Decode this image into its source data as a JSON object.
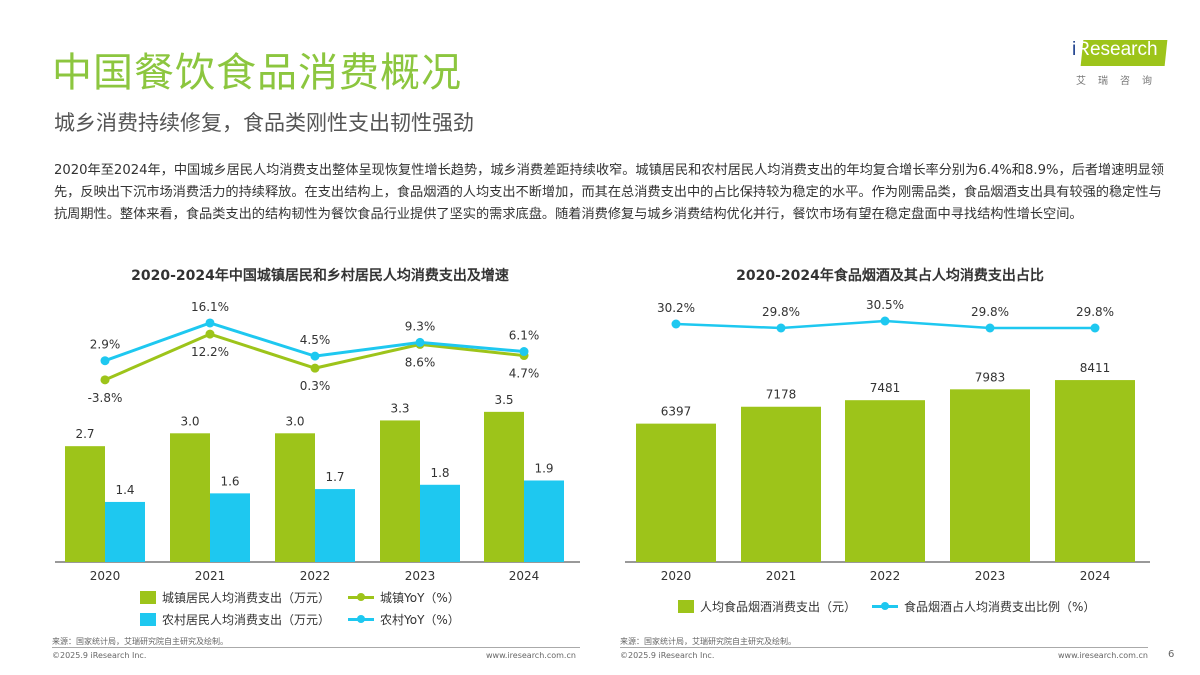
{
  "header": {
    "title": "中国餐饮食品消费概况",
    "subtitle": "城乡消费持续修复，食品类刚性支出韧性强劲",
    "logo_text": "iResearch",
    "logo_cn": "艾瑞咨询"
  },
  "body_text": "2020年至2024年，中国城乡居民人均消费支出整体呈现恢复性增长趋势，城乡消费差距持续收窄。城镇居民和农村居民人均消费支出的年均复合增长率分别为6.4%和8.9%，后者增速明显领先，反映出下沉市场消费活力的持续释放。在支出结构上，食品烟酒的人均支出不断增加，而其在总消费支出中的占比保持较为稳定的水平。作为刚需品类，食品烟酒支出具有较强的稳定性与抗周期性。整体来看，食品类支出的结构韧性为餐饮食品行业提供了坚实的需求底盘。随着消费修复与城乡消费结构优化并行，餐饮市场有望在稳定盘面中寻找结构性增长空间。",
  "colors": {
    "green": "#9dc41a",
    "blue": "#1ec8f0",
    "title_green": "#8cc63f"
  },
  "chart_data": [
    {
      "type": "bar+line",
      "title": "2020-2024年中国城镇居民和乡村居民人均消费支出及增速",
      "categories": [
        "2020",
        "2021",
        "2022",
        "2023",
        "2024"
      ],
      "series": [
        {
          "name": "城镇居民人均消费支出（万元）",
          "kind": "bar",
          "color": "#9dc41a",
          "values": [
            2.7,
            3.0,
            3.0,
            3.3,
            3.5
          ],
          "labels": [
            "2.7",
            "3.0",
            "3.0",
            "3.3",
            "3.5"
          ]
        },
        {
          "name": "农村居民人均消费支出（万元）",
          "kind": "bar",
          "color": "#1ec8f0",
          "values": [
            1.4,
            1.6,
            1.7,
            1.8,
            1.9
          ],
          "labels": [
            "1.4",
            "1.6",
            "1.7",
            "1.8",
            "1.9"
          ]
        },
        {
          "name": "城镇YoY（%）",
          "kind": "line",
          "color": "#9dc41a",
          "values": [
            -3.8,
            12.2,
            0.3,
            8.6,
            4.7
          ],
          "labels": [
            "-3.8%",
            "12.2%",
            "0.3%",
            "8.6%",
            "4.7%"
          ]
        },
        {
          "name": "农村YoY（%）",
          "kind": "line",
          "color": "#1ec8f0",
          "values": [
            2.9,
            16.1,
            4.5,
            9.3,
            6.1
          ],
          "labels": [
            "2.9%",
            "16.1%",
            "4.5%",
            "9.3%",
            "6.1%"
          ]
        }
      ],
      "legend": "bottom"
    },
    {
      "type": "bar+line",
      "title": "2020-2024年食品烟酒及其占人均消费支出占比",
      "categories": [
        "2020",
        "2021",
        "2022",
        "2023",
        "2024"
      ],
      "series": [
        {
          "name": "人均食品烟酒消费支出（元）",
          "kind": "bar",
          "color": "#9dc41a",
          "values": [
            6397,
            7178,
            7481,
            7983,
            8411
          ],
          "labels": [
            "6397",
            "7178",
            "7481",
            "7983",
            "8411"
          ]
        },
        {
          "name": "食品烟酒占人均消费支出比例（%）",
          "kind": "line",
          "color": "#1ec8f0",
          "values": [
            30.2,
            29.8,
            30.5,
            29.8,
            29.8
          ],
          "labels": [
            "30.2%",
            "29.8%",
            "30.5%",
            "29.8%",
            "29.8%"
          ]
        }
      ],
      "legend": "bottom"
    }
  ],
  "footer": {
    "source_left": "来源：国家统计局，艾瑞研究院自主研究及绘制。",
    "source_right": "来源：国家统计局，艾瑞研究院自主研究及绘制。",
    "copyright": "©2025.9 iResearch Inc.",
    "website": "www.iresearch.com.cn",
    "page": "6"
  }
}
